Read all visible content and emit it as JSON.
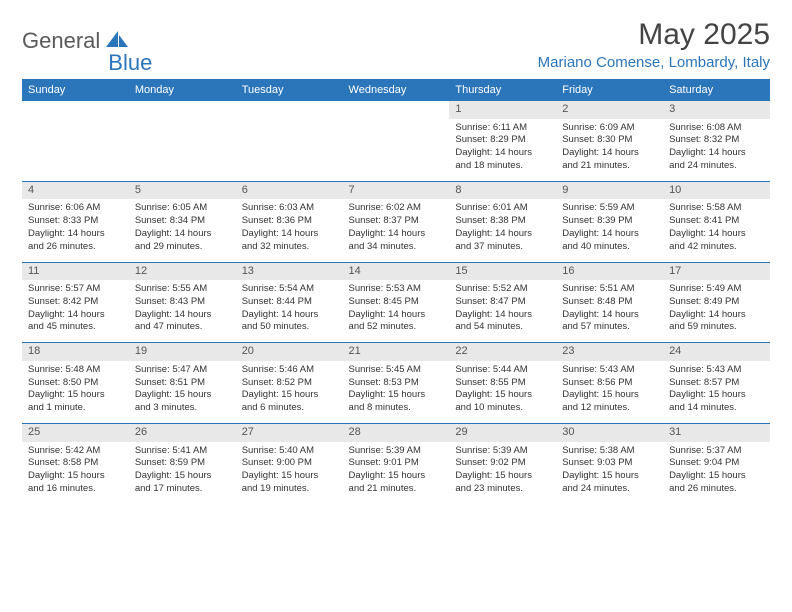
{
  "logo": {
    "part1": "General",
    "part2": "Blue"
  },
  "title": "May 2025",
  "location": "Mariano Comense, Lombardy, Italy",
  "header_bg": "#2b75bb",
  "header_fg": "#ffffff",
  "daynum_bg": "#e8e8e8",
  "border_color": "#2b75bb",
  "weekdays": [
    "Sunday",
    "Monday",
    "Tuesday",
    "Wednesday",
    "Thursday",
    "Friday",
    "Saturday"
  ],
  "weeks": [
    {
      "nums": [
        "",
        "",
        "",
        "",
        "1",
        "2",
        "3"
      ],
      "cells": [
        {
          "empty": true
        },
        {
          "empty": true
        },
        {
          "empty": true
        },
        {
          "empty": true
        },
        {
          "sunrise": "Sunrise: 6:11 AM",
          "sunset": "Sunset: 8:29 PM",
          "daylight": "Daylight: 14 hours and 18 minutes."
        },
        {
          "sunrise": "Sunrise: 6:09 AM",
          "sunset": "Sunset: 8:30 PM",
          "daylight": "Daylight: 14 hours and 21 minutes."
        },
        {
          "sunrise": "Sunrise: 6:08 AM",
          "sunset": "Sunset: 8:32 PM",
          "daylight": "Daylight: 14 hours and 24 minutes."
        }
      ]
    },
    {
      "nums": [
        "4",
        "5",
        "6",
        "7",
        "8",
        "9",
        "10"
      ],
      "cells": [
        {
          "sunrise": "Sunrise: 6:06 AM",
          "sunset": "Sunset: 8:33 PM",
          "daylight": "Daylight: 14 hours and 26 minutes."
        },
        {
          "sunrise": "Sunrise: 6:05 AM",
          "sunset": "Sunset: 8:34 PM",
          "daylight": "Daylight: 14 hours and 29 minutes."
        },
        {
          "sunrise": "Sunrise: 6:03 AM",
          "sunset": "Sunset: 8:36 PM",
          "daylight": "Daylight: 14 hours and 32 minutes."
        },
        {
          "sunrise": "Sunrise: 6:02 AM",
          "sunset": "Sunset: 8:37 PM",
          "daylight": "Daylight: 14 hours and 34 minutes."
        },
        {
          "sunrise": "Sunrise: 6:01 AM",
          "sunset": "Sunset: 8:38 PM",
          "daylight": "Daylight: 14 hours and 37 minutes."
        },
        {
          "sunrise": "Sunrise: 5:59 AM",
          "sunset": "Sunset: 8:39 PM",
          "daylight": "Daylight: 14 hours and 40 minutes."
        },
        {
          "sunrise": "Sunrise: 5:58 AM",
          "sunset": "Sunset: 8:41 PM",
          "daylight": "Daylight: 14 hours and 42 minutes."
        }
      ]
    },
    {
      "nums": [
        "11",
        "12",
        "13",
        "14",
        "15",
        "16",
        "17"
      ],
      "cells": [
        {
          "sunrise": "Sunrise: 5:57 AM",
          "sunset": "Sunset: 8:42 PM",
          "daylight": "Daylight: 14 hours and 45 minutes."
        },
        {
          "sunrise": "Sunrise: 5:55 AM",
          "sunset": "Sunset: 8:43 PM",
          "daylight": "Daylight: 14 hours and 47 minutes."
        },
        {
          "sunrise": "Sunrise: 5:54 AM",
          "sunset": "Sunset: 8:44 PM",
          "daylight": "Daylight: 14 hours and 50 minutes."
        },
        {
          "sunrise": "Sunrise: 5:53 AM",
          "sunset": "Sunset: 8:45 PM",
          "daylight": "Daylight: 14 hours and 52 minutes."
        },
        {
          "sunrise": "Sunrise: 5:52 AM",
          "sunset": "Sunset: 8:47 PM",
          "daylight": "Daylight: 14 hours and 54 minutes."
        },
        {
          "sunrise": "Sunrise: 5:51 AM",
          "sunset": "Sunset: 8:48 PM",
          "daylight": "Daylight: 14 hours and 57 minutes."
        },
        {
          "sunrise": "Sunrise: 5:49 AM",
          "sunset": "Sunset: 8:49 PM",
          "daylight": "Daylight: 14 hours and 59 minutes."
        }
      ]
    },
    {
      "nums": [
        "18",
        "19",
        "20",
        "21",
        "22",
        "23",
        "24"
      ],
      "cells": [
        {
          "sunrise": "Sunrise: 5:48 AM",
          "sunset": "Sunset: 8:50 PM",
          "daylight": "Daylight: 15 hours and 1 minute."
        },
        {
          "sunrise": "Sunrise: 5:47 AM",
          "sunset": "Sunset: 8:51 PM",
          "daylight": "Daylight: 15 hours and 3 minutes."
        },
        {
          "sunrise": "Sunrise: 5:46 AM",
          "sunset": "Sunset: 8:52 PM",
          "daylight": "Daylight: 15 hours and 6 minutes."
        },
        {
          "sunrise": "Sunrise: 5:45 AM",
          "sunset": "Sunset: 8:53 PM",
          "daylight": "Daylight: 15 hours and 8 minutes."
        },
        {
          "sunrise": "Sunrise: 5:44 AM",
          "sunset": "Sunset: 8:55 PM",
          "daylight": "Daylight: 15 hours and 10 minutes."
        },
        {
          "sunrise": "Sunrise: 5:43 AM",
          "sunset": "Sunset: 8:56 PM",
          "daylight": "Daylight: 15 hours and 12 minutes."
        },
        {
          "sunrise": "Sunrise: 5:43 AM",
          "sunset": "Sunset: 8:57 PM",
          "daylight": "Daylight: 15 hours and 14 minutes."
        }
      ]
    },
    {
      "nums": [
        "25",
        "26",
        "27",
        "28",
        "29",
        "30",
        "31"
      ],
      "cells": [
        {
          "sunrise": "Sunrise: 5:42 AM",
          "sunset": "Sunset: 8:58 PM",
          "daylight": "Daylight: 15 hours and 16 minutes."
        },
        {
          "sunrise": "Sunrise: 5:41 AM",
          "sunset": "Sunset: 8:59 PM",
          "daylight": "Daylight: 15 hours and 17 minutes."
        },
        {
          "sunrise": "Sunrise: 5:40 AM",
          "sunset": "Sunset: 9:00 PM",
          "daylight": "Daylight: 15 hours and 19 minutes."
        },
        {
          "sunrise": "Sunrise: 5:39 AM",
          "sunset": "Sunset: 9:01 PM",
          "daylight": "Daylight: 15 hours and 21 minutes."
        },
        {
          "sunrise": "Sunrise: 5:39 AM",
          "sunset": "Sunset: 9:02 PM",
          "daylight": "Daylight: 15 hours and 23 minutes."
        },
        {
          "sunrise": "Sunrise: 5:38 AM",
          "sunset": "Sunset: 9:03 PM",
          "daylight": "Daylight: 15 hours and 24 minutes."
        },
        {
          "sunrise": "Sunrise: 5:37 AM",
          "sunset": "Sunset: 9:04 PM",
          "daylight": "Daylight: 15 hours and 26 minutes."
        }
      ]
    }
  ]
}
